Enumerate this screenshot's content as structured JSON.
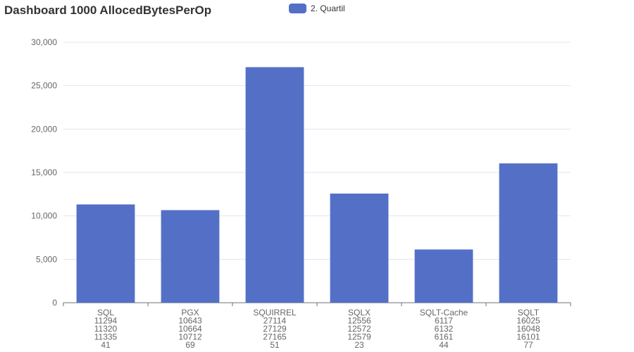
{
  "chart_data": {
    "type": "bar",
    "title": "Dashboard 1000 AllocedBytesPerOp",
    "xlabel": "",
    "ylabel": "",
    "ylim": [
      0,
      30000
    ],
    "yticks": [
      "0",
      "5,000",
      "10,000",
      "15,000",
      "20,000",
      "25,000",
      "30,000"
    ],
    "ytick_values": [
      0,
      5000,
      10000,
      15000,
      20000,
      25000,
      30000
    ],
    "grid": true,
    "legend_position": "top-center",
    "categories": [
      {
        "name": "SQL",
        "details": [
          "11294",
          "11320",
          "11335",
          "41"
        ]
      },
      {
        "name": "PGX",
        "details": [
          "10643",
          "10664",
          "10712",
          "69"
        ]
      },
      {
        "name": "SQUIRREL",
        "details": [
          "27114",
          "27129",
          "27165",
          "51"
        ]
      },
      {
        "name": "SQLX",
        "details": [
          "12556",
          "12572",
          "12579",
          "23"
        ]
      },
      {
        "name": "SQLT-Cache",
        "details": [
          "6117",
          "6132",
          "6161",
          "44"
        ]
      },
      {
        "name": "SQLT",
        "details": [
          "16025",
          "16048",
          "16101",
          "77"
        ]
      }
    ],
    "series": [
      {
        "name": "2. Quartil",
        "values": [
          11320,
          10664,
          27129,
          12572,
          6132,
          16048
        ]
      }
    ],
    "colors": {
      "bar": "#5470c6",
      "grid": "#e0e6f1",
      "axis": "#6e7079",
      "text": "#666666"
    }
  }
}
